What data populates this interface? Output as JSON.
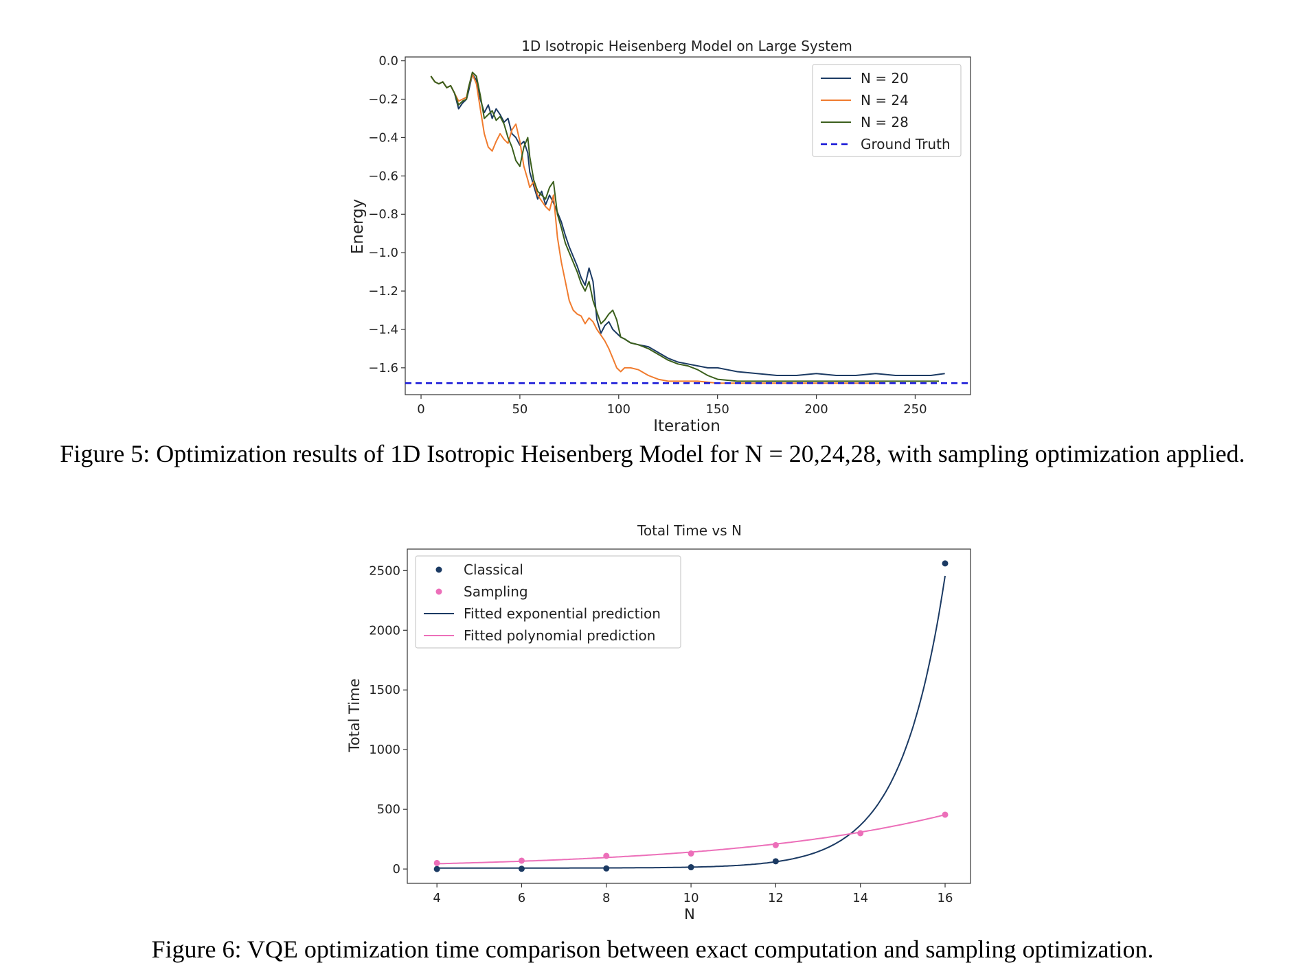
{
  "chart_data": [
    {
      "type": "line",
      "title": "1D Isotropic Heisenberg Model on Large System",
      "xlabel": "Iteration",
      "ylabel": "Energy",
      "xlim": [
        -8,
        278
      ],
      "ylim": [
        -1.74,
        0.02
      ],
      "xticks": [
        0,
        50,
        100,
        150,
        200,
        250
      ],
      "xtick_labels": [
        "0",
        "50",
        "100",
        "150",
        "200",
        "250"
      ],
      "yticks": [
        0.0,
        -0.2,
        -0.4,
        -0.6,
        -0.8,
        -1.0,
        -1.2,
        -1.4,
        -1.6
      ],
      "ytick_labels": [
        "0.0",
        "−0.2",
        "−0.4",
        "−0.6",
        "−0.8",
        "−1.0",
        "−1.2",
        "−1.4",
        "−1.6"
      ],
      "legend_position": "top-right",
      "series": [
        {
          "name": "N = 20",
          "color": "#1b3a63",
          "points": [
            [
              5,
              -0.08
            ],
            [
              7,
              -0.11
            ],
            [
              9,
              -0.12
            ],
            [
              11,
              -0.11
            ],
            [
              13,
              -0.14
            ],
            [
              15,
              -0.13
            ],
            [
              17,
              -0.17
            ],
            [
              19,
              -0.25
            ],
            [
              21,
              -0.22
            ],
            [
              23,
              -0.2
            ],
            [
              24,
              -0.16
            ],
            [
              26,
              -0.07
            ],
            [
              28,
              -0.1
            ],
            [
              30,
              -0.2
            ],
            [
              32,
              -0.27
            ],
            [
              34,
              -0.23
            ],
            [
              36,
              -0.3
            ],
            [
              38,
              -0.25
            ],
            [
              40,
              -0.28
            ],
            [
              42,
              -0.32
            ],
            [
              44,
              -0.3
            ],
            [
              46,
              -0.38
            ],
            [
              48,
              -0.4
            ],
            [
              50,
              -0.44
            ],
            [
              52,
              -0.42
            ],
            [
              54,
              -0.48
            ],
            [
              55,
              -0.58
            ],
            [
              57,
              -0.65
            ],
            [
              59,
              -0.72
            ],
            [
              61,
              -0.68
            ],
            [
              63,
              -0.75
            ],
            [
              65,
              -0.7
            ],
            [
              67,
              -0.74
            ],
            [
              69,
              -0.79
            ],
            [
              71,
              -0.84
            ],
            [
              73,
              -0.91
            ],
            [
              75,
              -0.97
            ],
            [
              77,
              -1.02
            ],
            [
              79,
              -1.07
            ],
            [
              81,
              -1.13
            ],
            [
              83,
              -1.17
            ],
            [
              85,
              -1.08
            ],
            [
              87,
              -1.15
            ],
            [
              89,
              -1.35
            ],
            [
              91,
              -1.42
            ],
            [
              93,
              -1.38
            ],
            [
              95,
              -1.36
            ],
            [
              97,
              -1.4
            ],
            [
              99,
              -1.42
            ],
            [
              101,
              -1.44
            ],
            [
              103,
              -1.45
            ],
            [
              106,
              -1.47
            ],
            [
              110,
              -1.48
            ],
            [
              115,
              -1.49
            ],
            [
              120,
              -1.52
            ],
            [
              125,
              -1.55
            ],
            [
              130,
              -1.57
            ],
            [
              135,
              -1.58
            ],
            [
              140,
              -1.59
            ],
            [
              145,
              -1.6
            ],
            [
              150,
              -1.6
            ],
            [
              155,
              -1.61
            ],
            [
              160,
              -1.62
            ],
            [
              170,
              -1.63
            ],
            [
              180,
              -1.64
            ],
            [
              190,
              -1.64
            ],
            [
              200,
              -1.63
            ],
            [
              210,
              -1.64
            ],
            [
              220,
              -1.64
            ],
            [
              230,
              -1.63
            ],
            [
              240,
              -1.64
            ],
            [
              250,
              -1.64
            ],
            [
              258,
              -1.64
            ],
            [
              265,
              -1.63
            ]
          ]
        },
        {
          "name": "N = 24",
          "color": "#f07b2e",
          "points": [
            [
              5,
              -0.08
            ],
            [
              7,
              -0.11
            ],
            [
              9,
              -0.12
            ],
            [
              11,
              -0.11
            ],
            [
              13,
              -0.14
            ],
            [
              15,
              -0.13
            ],
            [
              17,
              -0.17
            ],
            [
              19,
              -0.21
            ],
            [
              21,
              -0.2
            ],
            [
              23,
              -0.19
            ],
            [
              24,
              -0.14
            ],
            [
              26,
              -0.07
            ],
            [
              28,
              -0.12
            ],
            [
              30,
              -0.25
            ],
            [
              32,
              -0.38
            ],
            [
              34,
              -0.45
            ],
            [
              36,
              -0.47
            ],
            [
              38,
              -0.42
            ],
            [
              40,
              -0.38
            ],
            [
              42,
              -0.41
            ],
            [
              44,
              -0.43
            ],
            [
              46,
              -0.36
            ],
            [
              48,
              -0.33
            ],
            [
              50,
              -0.42
            ],
            [
              52,
              -0.55
            ],
            [
              54,
              -0.62
            ],
            [
              55,
              -0.66
            ],
            [
              57,
              -0.63
            ],
            [
              59,
              -0.7
            ],
            [
              61,
              -0.73
            ],
            [
              63,
              -0.76
            ],
            [
              65,
              -0.78
            ],
            [
              67,
              -0.7
            ],
            [
              69,
              -0.92
            ],
            [
              71,
              -1.05
            ],
            [
              73,
              -1.15
            ],
            [
              75,
              -1.25
            ],
            [
              77,
              -1.3
            ],
            [
              79,
              -1.32
            ],
            [
              81,
              -1.33
            ],
            [
              83,
              -1.37
            ],
            [
              85,
              -1.34
            ],
            [
              87,
              -1.36
            ],
            [
              89,
              -1.4
            ],
            [
              91,
              -1.43
            ],
            [
              93,
              -1.46
            ],
            [
              95,
              -1.5
            ],
            [
              97,
              -1.55
            ],
            [
              99,
              -1.6
            ],
            [
              101,
              -1.62
            ],
            [
              103,
              -1.6
            ],
            [
              106,
              -1.6
            ],
            [
              110,
              -1.61
            ],
            [
              115,
              -1.64
            ],
            [
              120,
              -1.66
            ],
            [
              125,
              -1.67
            ],
            [
              130,
              -1.67
            ],
            [
              140,
              -1.67
            ],
            [
              150,
              -1.68
            ],
            [
              160,
              -1.68
            ],
            [
              170,
              -1.68
            ],
            [
              180,
              -1.68
            ],
            [
              200,
              -1.68
            ],
            [
              220,
              -1.68
            ],
            [
              235,
              -1.68
            ]
          ]
        },
        {
          "name": "N = 28",
          "color": "#3b5f1c",
          "points": [
            [
              5,
              -0.08
            ],
            [
              7,
              -0.11
            ],
            [
              9,
              -0.12
            ],
            [
              11,
              -0.11
            ],
            [
              13,
              -0.14
            ],
            [
              15,
              -0.13
            ],
            [
              17,
              -0.17
            ],
            [
              19,
              -0.23
            ],
            [
              21,
              -0.21
            ],
            [
              23,
              -0.2
            ],
            [
              24,
              -0.14
            ],
            [
              26,
              -0.06
            ],
            [
              28,
              -0.08
            ],
            [
              30,
              -0.18
            ],
            [
              32,
              -0.3
            ],
            [
              34,
              -0.28
            ],
            [
              36,
              -0.26
            ],
            [
              38,
              -0.31
            ],
            [
              40,
              -0.29
            ],
            [
              42,
              -0.33
            ],
            [
              44,
              -0.4
            ],
            [
              46,
              -0.45
            ],
            [
              48,
              -0.52
            ],
            [
              50,
              -0.55
            ],
            [
              52,
              -0.45
            ],
            [
              54,
              -0.4
            ],
            [
              55,
              -0.5
            ],
            [
              57,
              -0.62
            ],
            [
              59,
              -0.68
            ],
            [
              61,
              -0.7
            ],
            [
              63,
              -0.72
            ],
            [
              65,
              -0.66
            ],
            [
              67,
              -0.63
            ],
            [
              69,
              -0.8
            ],
            [
              71,
              -0.87
            ],
            [
              73,
              -0.95
            ],
            [
              75,
              -1.0
            ],
            [
              77,
              -1.05
            ],
            [
              79,
              -1.1
            ],
            [
              81,
              -1.16
            ],
            [
              83,
              -1.2
            ],
            [
              85,
              -1.15
            ],
            [
              87,
              -1.25
            ],
            [
              89,
              -1.31
            ],
            [
              91,
              -1.37
            ],
            [
              93,
              -1.35
            ],
            [
              95,
              -1.32
            ],
            [
              97,
              -1.3
            ],
            [
              99,
              -1.35
            ],
            [
              101,
              -1.44
            ],
            [
              103,
              -1.45
            ],
            [
              106,
              -1.47
            ],
            [
              110,
              -1.48
            ],
            [
              115,
              -1.5
            ],
            [
              120,
              -1.53
            ],
            [
              125,
              -1.56
            ],
            [
              130,
              -1.58
            ],
            [
              135,
              -1.59
            ],
            [
              140,
              -1.61
            ],
            [
              145,
              -1.64
            ],
            [
              150,
              -1.66
            ],
            [
              160,
              -1.67
            ],
            [
              170,
              -1.67
            ],
            [
              180,
              -1.67
            ],
            [
              190,
              -1.67
            ],
            [
              200,
              -1.67
            ],
            [
              210,
              -1.67
            ],
            [
              220,
              -1.67
            ],
            [
              230,
              -1.67
            ],
            [
              240,
              -1.67
            ],
            [
              250,
              -1.67
            ],
            [
              262,
              -1.67
            ]
          ]
        }
      ],
      "reference_line": {
        "name": "Ground Truth",
        "y": -1.68,
        "color": "#1515d6"
      }
    },
    {
      "type": "scatter",
      "title": "Total Time vs N",
      "xlabel": "N",
      "ylabel": "Total Time",
      "xlim": [
        3.3,
        16.6
      ],
      "ylim": [
        -120,
        2680
      ],
      "xticks": [
        4,
        6,
        8,
        10,
        12,
        14,
        16
      ],
      "xtick_labels": [
        "4",
        "6",
        "8",
        "10",
        "12",
        "14",
        "16"
      ],
      "yticks": [
        0,
        500,
        1000,
        1500,
        2000,
        2500
      ],
      "ytick_labels": [
        "0",
        "500",
        "1000",
        "1500",
        "2000",
        "2500"
      ],
      "legend_position": "top-left",
      "series": [
        {
          "name": "Classical",
          "kind": "points",
          "color": "#1b3a63",
          "x": [
            4,
            6,
            8,
            10,
            12,
            16
          ],
          "y": [
            0,
            2,
            5,
            15,
            65,
            2560
          ]
        },
        {
          "name": "Sampling",
          "kind": "points",
          "color": "#ec6fb9",
          "x": [
            4,
            6,
            8,
            10,
            12,
            14,
            16
          ],
          "y": [
            50,
            70,
            110,
            130,
            200,
            300,
            455
          ]
        },
        {
          "name": "Fitted exponential prediction",
          "kind": "line",
          "color": "#1b3a63",
          "model": "exponential",
          "a": 0.00053,
          "b": 0.9591,
          "c": 8
        },
        {
          "name": "Fitted polynomial prediction",
          "kind": "line",
          "color": "#ec6fb9",
          "model": "exponential",
          "a": 20.41,
          "b": 0.194,
          "c": 0
        }
      ]
    }
  ],
  "captions": {
    "figure5": "Figure 5: Optimization results of 1D Isotropic Heisenberg Model for N = 20,24,28, with sampling optimization applied.",
    "figure6": "Figure 6: VQE optimization time comparison between exact computation and sampling optimization."
  }
}
